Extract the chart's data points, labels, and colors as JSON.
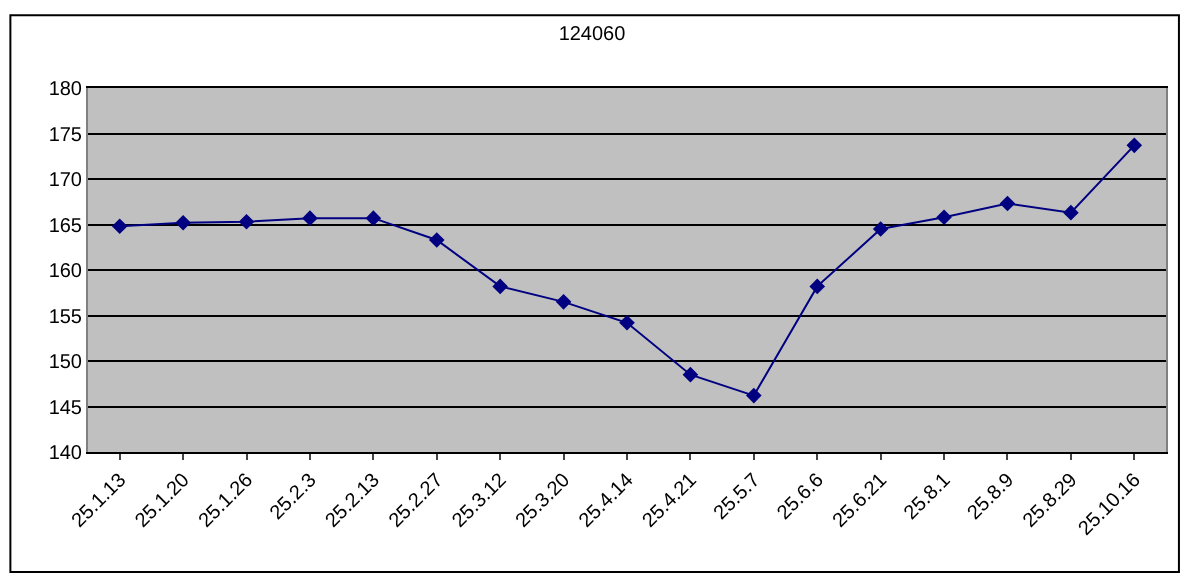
{
  "chart_data": {
    "type": "line",
    "title": "124060",
    "categories": [
      "25.1.13",
      "25.1.20",
      "25.1.26",
      "25.2.3",
      "25.2.13",
      "25.2.27",
      "25.3.12",
      "25.3.20",
      "25.4.14",
      "25.4.21",
      "25.5.7",
      "25.6.6",
      "25.6.21",
      "25.8.1",
      "25.8.9",
      "25.8.29",
      "25.10.16"
    ],
    "series": [
      {
        "color": "#000080",
        "values": [
          164.8,
          165.2,
          165.3,
          165.7,
          165.7,
          163.3,
          158.2,
          156.5,
          154.2,
          148.5,
          146.2,
          158.2,
          164.5,
          165.8,
          167.3,
          166.3,
          173.7
        ]
      }
    ],
    "ylim": [
      140,
      180
    ],
    "yticks": [
      140,
      145,
      150,
      155,
      160,
      165,
      170,
      175,
      180
    ],
    "grid": "y",
    "marker": "diamond",
    "line_style": "solid"
  }
}
